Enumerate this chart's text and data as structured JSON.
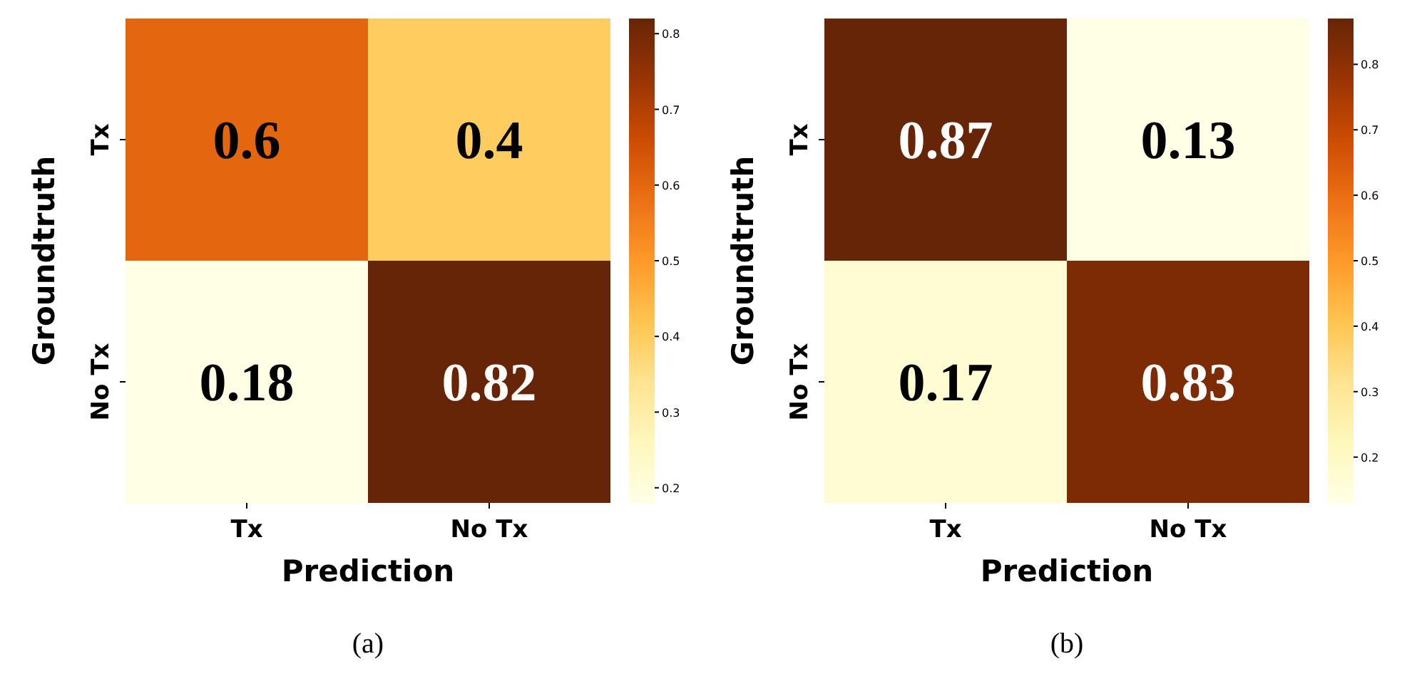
{
  "chart_data": [
    {
      "type": "heatmap",
      "xlabel": "Prediction",
      "ylabel": "Groundtruth",
      "categories": [
        "Tx",
        "No Tx"
      ],
      "y_categories": [
        "Tx",
        "No Tx"
      ],
      "cells": [
        [
          0.6,
          0.4
        ],
        [
          0.18,
          0.82
        ]
      ],
      "data_labels": true,
      "clim": [
        0.18,
        0.82
      ],
      "cticks": [
        0.2,
        0.3,
        0.4,
        0.5,
        0.6,
        0.7,
        0.8
      ],
      "annotations": [
        "(a)"
      ]
    },
    {
      "type": "heatmap",
      "xlabel": "Prediction",
      "ylabel": "Groundtruth",
      "categories": [
        "Tx",
        "No Tx"
      ],
      "y_categories": [
        "Tx",
        "No Tx"
      ],
      "cells": [
        [
          0.87,
          0.13
        ],
        [
          0.17,
          0.83
        ]
      ],
      "data_labels": true,
      "clim": [
        0.13,
        0.87
      ],
      "cticks": [
        0.2,
        0.3,
        0.4,
        0.5,
        0.6,
        0.7,
        0.8
      ],
      "annotations": [
        "(b)"
      ]
    }
  ]
}
